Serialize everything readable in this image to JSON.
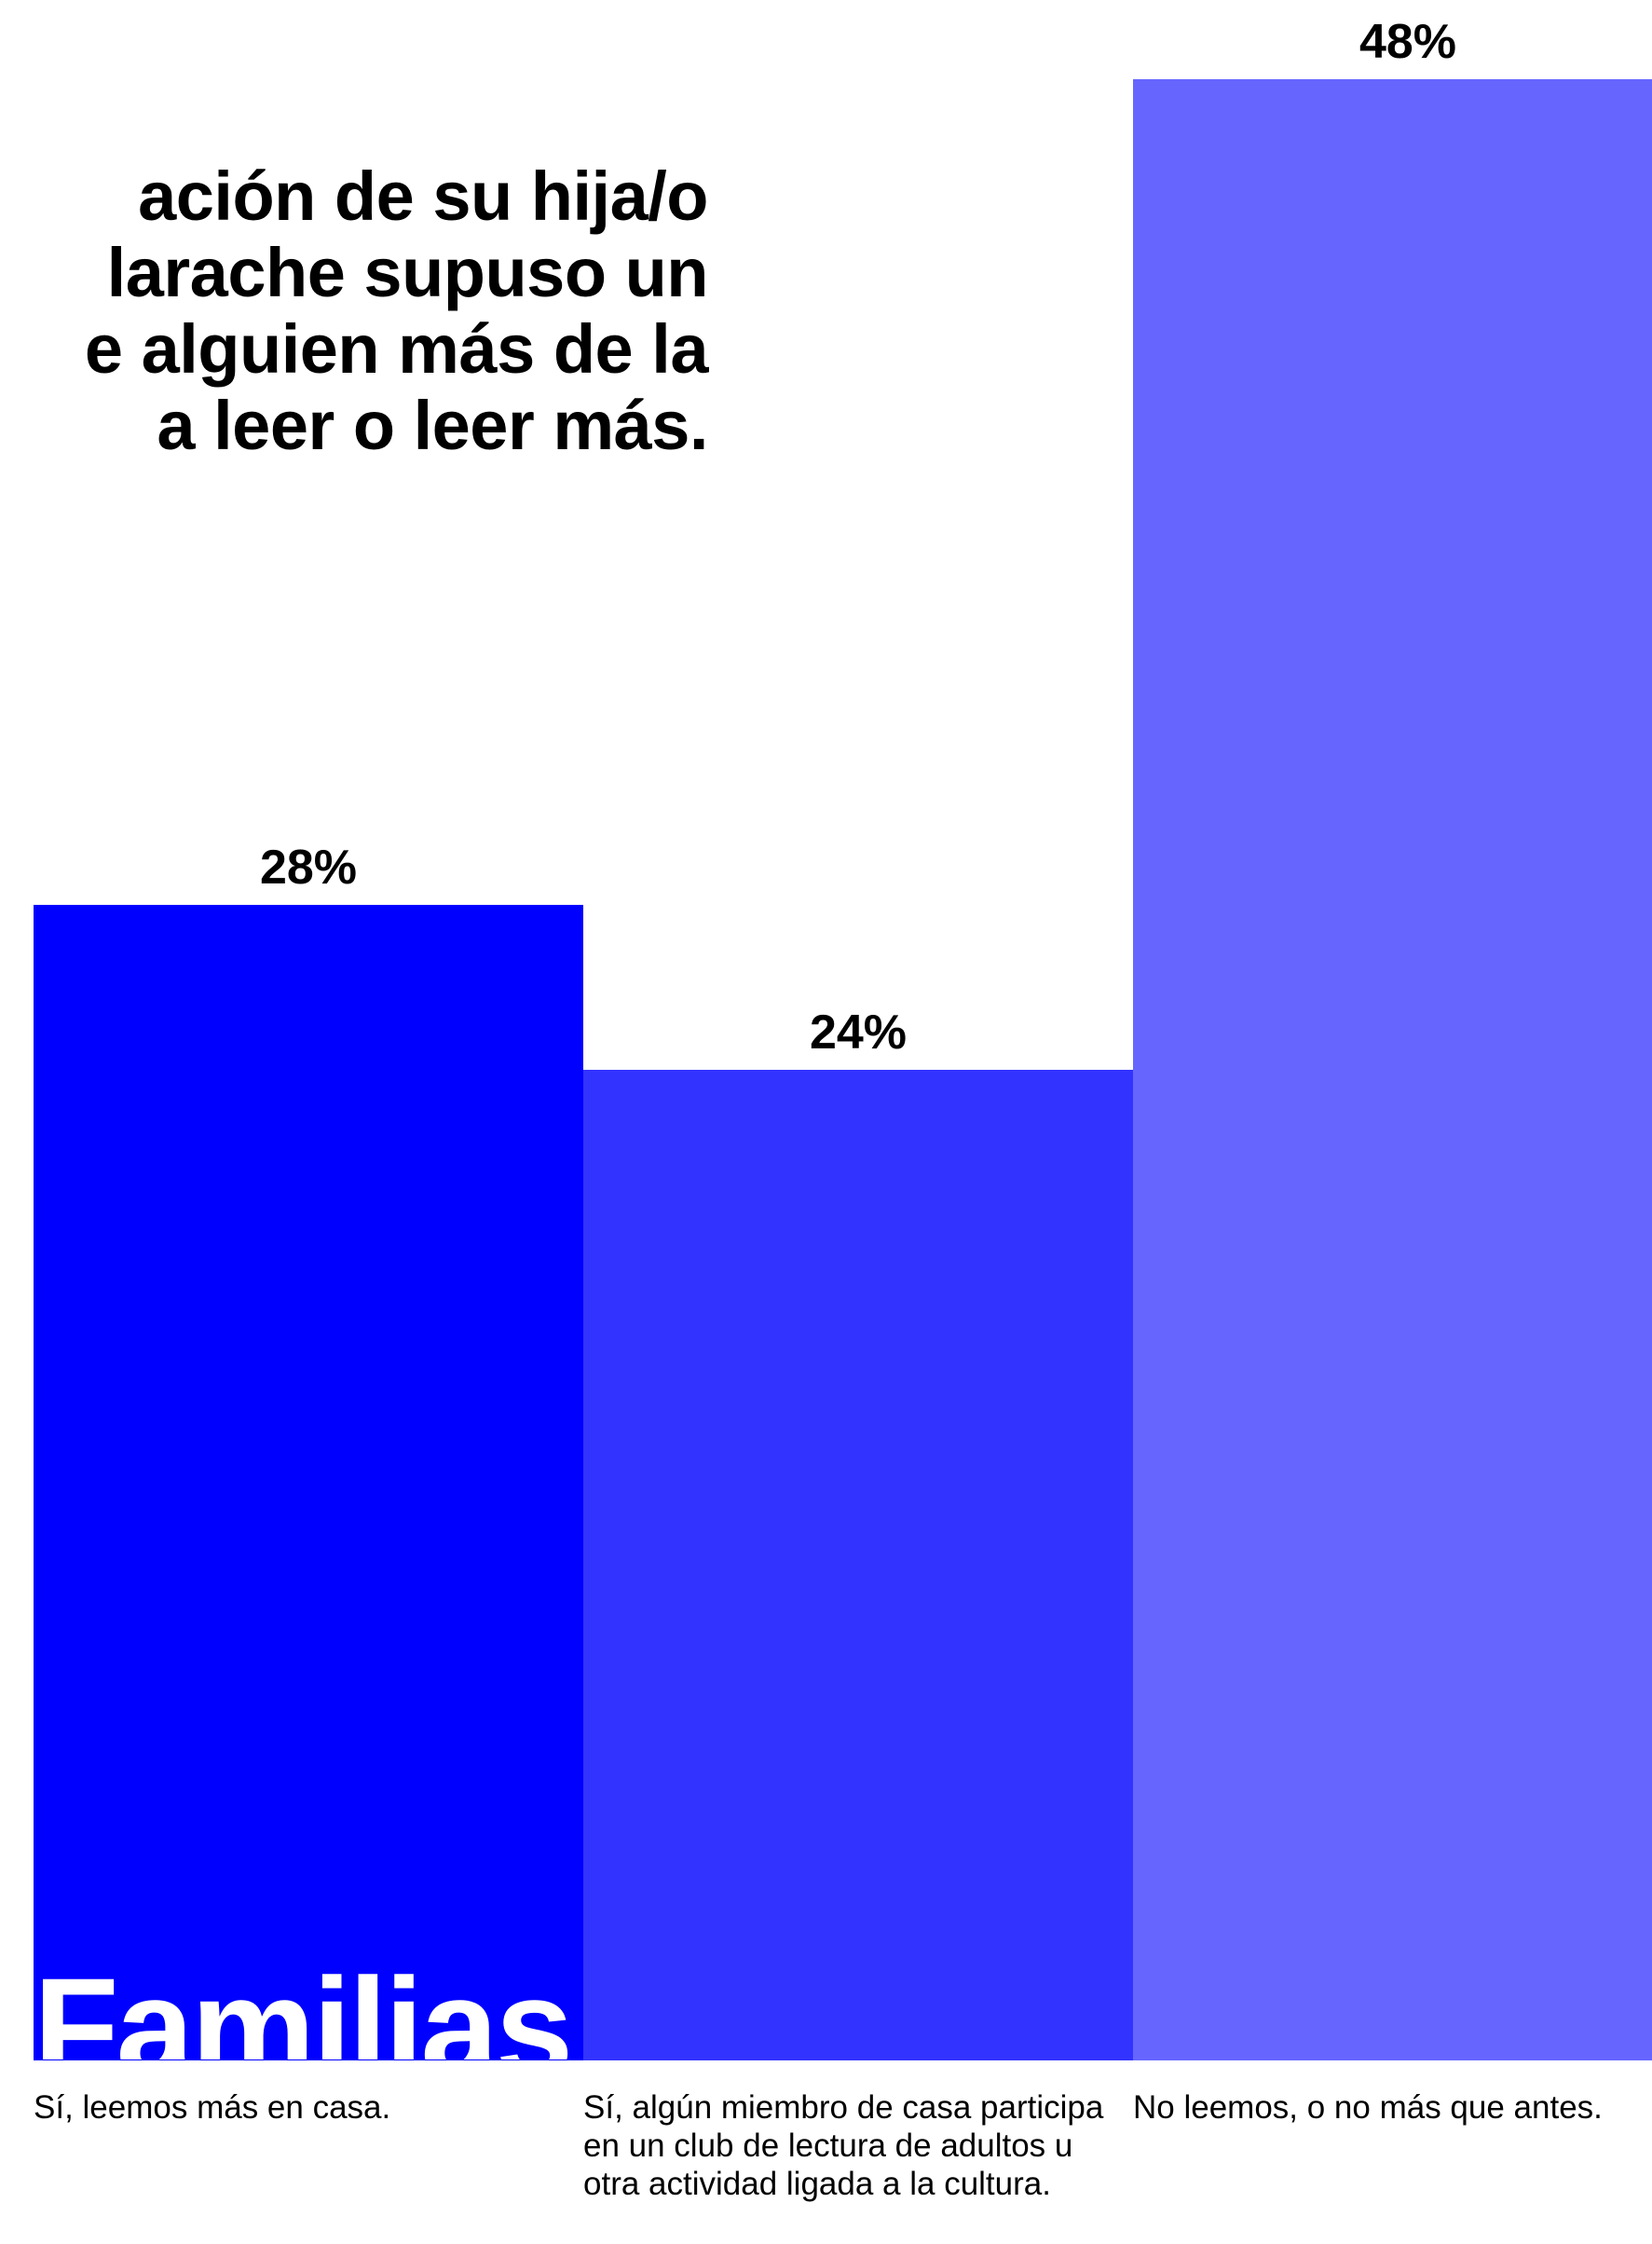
{
  "title_lines": [
    "ación de su hija/o",
    "larache supuso un",
    "e alguien más de la",
    "a leer o leer más."
  ],
  "watermark": "Familias",
  "chart_data": {
    "type": "bar",
    "categories": [
      "Sí, leemos más en casa.",
      "Sí, algún miembro de casa participa en un club de lectura de adultos u otra actividad ligada a la cultura.",
      "No leemos, o no más que antes."
    ],
    "values": [
      28,
      24,
      48
    ],
    "value_labels": [
      "28%",
      "24%",
      "48%"
    ],
    "colors": [
      "#0000ff",
      "#3333ff",
      "#6666ff"
    ],
    "title": "",
    "xlabel": "",
    "ylabel": "",
    "ylim": [
      0,
      48
    ],
    "grid": false,
    "legend": "none"
  }
}
